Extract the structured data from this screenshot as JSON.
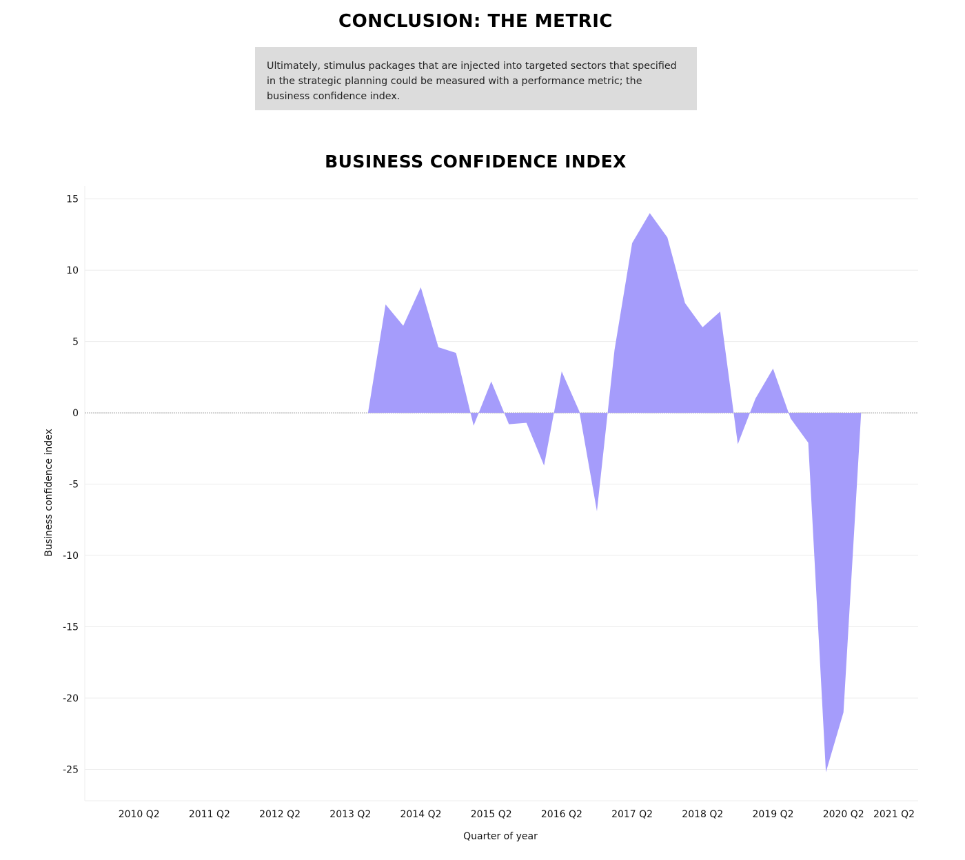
{
  "header": {
    "title": "CONCLUSION: THE METRIC",
    "note": "Ultimately, stimulus packages that are injected into targeted sectors that specified in the strategic planning could be measured with a performance metric; the business confidence index."
  },
  "chart_data": {
    "type": "area",
    "title": "BUSINESS CONFIDENCE INDEX",
    "xlabel": "Quarter of year",
    "ylabel": "Business confidence index",
    "ylim": [
      -27.2,
      15.9
    ],
    "y_ticks": [
      15,
      10,
      5,
      0,
      -5,
      -10,
      -15,
      -20,
      -25
    ],
    "x_ticks": [
      "2010 Q2",
      "2011 Q2",
      "2012 Q2",
      "2013 Q2",
      "2014 Q2",
      "2015 Q2",
      "2016 Q2",
      "2017 Q2",
      "2018 Q2",
      "2019 Q2",
      "2020 Q2",
      "2021 Q2"
    ],
    "grid": true,
    "fill_color": "#a59cfb",
    "series": [
      {
        "x": [
          "2009 Q4",
          "2010 Q1",
          "2010 Q2",
          "2010 Q3",
          "2010 Q4",
          "2011 Q1",
          "2011 Q2",
          "2011 Q3",
          "2011 Q4",
          "2012 Q1",
          "2012 Q2",
          "2012 Q3",
          "2012 Q4",
          "2013 Q1",
          "2013 Q2",
          "2013 Q3",
          "2013 Q4",
          "2014 Q1",
          "2014 Q2",
          "2014 Q3",
          "2014 Q4",
          "2015 Q1",
          "2015 Q2",
          "2015 Q3",
          "2015 Q4",
          "2016 Q1",
          "2016 Q2",
          "2016 Q3",
          "2016 Q4",
          "2017 Q1",
          "2017 Q2",
          "2017 Q3",
          "2017 Q4",
          "2018 Q1",
          "2018 Q2",
          "2018 Q3",
          "2018 Q4",
          "2019 Q1",
          "2019 Q2",
          "2019 Q3",
          "2019 Q4",
          "2020 Q1",
          "2020 Q2",
          "2020 Q3",
          "2020 Q4"
        ],
        "values": [
          0,
          0,
          0,
          0,
          0,
          0,
          0,
          0,
          0,
          0,
          0,
          0,
          0,
          0,
          0,
          0,
          7.6,
          6.1,
          8.8,
          4.6,
          4.2,
          -0.9,
          2.2,
          -0.8,
          -0.7,
          -3.7,
          2.9,
          0.1,
          -6.9,
          4.4,
          11.9,
          14.0,
          12.3,
          7.7,
          6.0,
          7.1,
          -2.2,
          1.0,
          3.1,
          -0.4,
          -2.1,
          -25.2,
          -21.0,
          0,
          0
        ]
      }
    ]
  }
}
